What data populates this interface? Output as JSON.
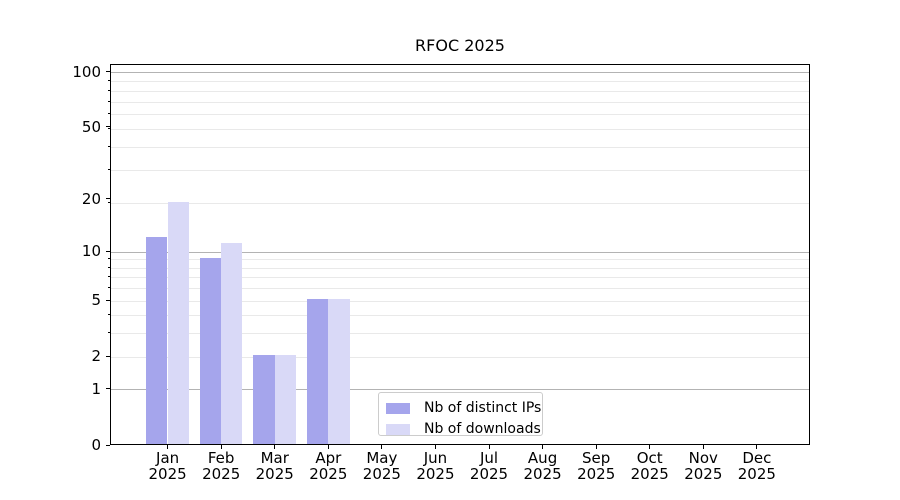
{
  "chart_data": {
    "type": "bar",
    "title": "RFOC 2025",
    "categories": [
      "Jan",
      "Feb",
      "Mar",
      "Apr",
      "May",
      "Jun",
      "Jul",
      "Aug",
      "Sep",
      "Oct",
      "Nov",
      "Dec"
    ],
    "year": "2025",
    "series": [
      {
        "name": "Nb of distinct IPs",
        "color": "#a5a5ec",
        "values": [
          12,
          9,
          2,
          5,
          0,
          0,
          0,
          0,
          0,
          0,
          0,
          0
        ]
      },
      {
        "name": "Nb of downloads",
        "color": "#d9d9f7",
        "values": [
          19,
          11,
          2,
          5,
          0,
          0,
          0,
          0,
          0,
          0,
          0,
          0
        ]
      }
    ],
    "yscale": "log1p",
    "ylim": [
      0,
      110
    ],
    "yticks": [
      100,
      50,
      20,
      10,
      5,
      2,
      1,
      0
    ],
    "major_gridline_values": [
      100,
      10,
      1
    ],
    "minor_gridline_values": [
      2,
      3,
      4,
      5,
      6,
      7,
      8,
      9,
      19,
      29,
      39,
      49,
      59,
      69,
      79,
      89
    ],
    "grid": true,
    "legend_position": "lower center",
    "colors": {
      "axis": "#000000",
      "text": "#000000",
      "major_grid": "#b3b3b3",
      "minor_grid": "#e9e9e9",
      "legend_border": "#cccccc"
    }
  }
}
